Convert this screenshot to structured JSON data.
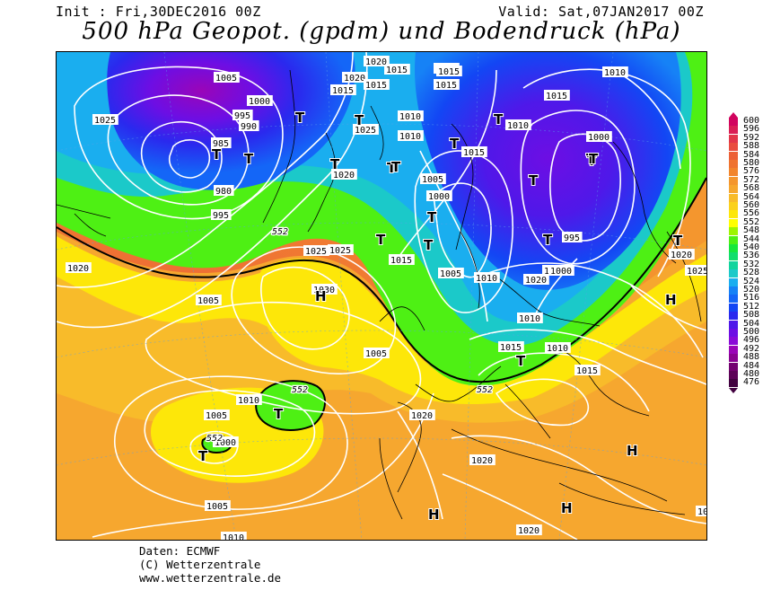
{
  "header": {
    "init": "Init : Fri,30DEC2016 00Z",
    "valid": "Valid: Sat,07JAN2017 00Z",
    "title": "500 hPa Geopot. (gpdm) und Bodendruck (hPa)"
  },
  "footer": {
    "lines": [
      "Daten: ECMWF",
      "(C) Wetterzentrale",
      "www.wetterzentrale.de"
    ]
  },
  "legend": {
    "levels": [
      "600",
      "596",
      "592",
      "588",
      "584",
      "580",
      "576",
      "572",
      "568",
      "564",
      "560",
      "556",
      "552",
      "548",
      "544",
      "540",
      "536",
      "532",
      "528",
      "524",
      "520",
      "516",
      "512",
      "508",
      "504",
      "500",
      "496",
      "492",
      "488",
      "484",
      "480",
      "476"
    ],
    "colors": [
      "#d1045e",
      "#da1e55",
      "#e2364a",
      "#e94d3f",
      "#ec6036",
      "#ef7330",
      "#f2852c",
      "#f4962e",
      "#f6a72f",
      "#f8bb2a",
      "#fbd11c",
      "#fde709",
      "#ffff00",
      "#9df500",
      "#4ef014",
      "#17e73c",
      "#12de6c",
      "#11d49d",
      "#1bc9c9",
      "#1aaeef",
      "#1682f6",
      "#1466f7",
      "#1346f4",
      "#2a29ee",
      "#4f18e9",
      "#6d0ee4",
      "#8a0ad8",
      "#9a05b8",
      "#8a0392",
      "#730270",
      "#5d0258",
      "#420140"
    ]
  },
  "map": {
    "pressure_labels": [
      {
        "text": "1005"
      },
      {
        "text": "1020"
      },
      {
        "text": "1015"
      },
      {
        "text": "1020"
      },
      {
        "text": "1015"
      },
      {
        "text": "1010"
      },
      {
        "text": "1025"
      },
      {
        "text": "1025"
      },
      {
        "text": "1000"
      },
      {
        "text": "995"
      },
      {
        "text": "990"
      },
      {
        "text": "985"
      },
      {
        "text": "1015"
      },
      {
        "text": "1025"
      },
      {
        "text": "1010"
      },
      {
        "text": "1010"
      },
      {
        "text": "1015"
      },
      {
        "text": "1015"
      },
      {
        "text": "1010"
      },
      {
        "text": "1000"
      },
      {
        "text": "1015"
      },
      {
        "text": "1020"
      },
      {
        "text": "1015"
      },
      {
        "text": "1005"
      },
      {
        "text": "1000"
      },
      {
        "text": "980"
      },
      {
        "text": "995"
      },
      {
        "text": "1020"
      },
      {
        "text": "1000"
      },
      {
        "text": "1020"
      },
      {
        "text": "1025"
      },
      {
        "text": "1015"
      },
      {
        "text": "1005"
      },
      {
        "text": "1010"
      },
      {
        "text": "995"
      },
      {
        "text": "1000"
      },
      {
        "text": "1005"
      },
      {
        "text": "1020"
      },
      {
        "text": "1025"
      },
      {
        "text": "1030"
      },
      {
        "text": "1005"
      },
      {
        "text": "1010"
      },
      {
        "text": "1015"
      },
      {
        "text": "1010"
      },
      {
        "text": "1015"
      },
      {
        "text": "1025"
      },
      {
        "text": "1010"
      },
      {
        "text": "1020"
      },
      {
        "text": "1005"
      },
      {
        "text": "1000"
      },
      {
        "text": "1020"
      },
      {
        "text": "1005"
      },
      {
        "text": "1010"
      },
      {
        "text": "1020"
      },
      {
        "text": "1020"
      },
      {
        "text": "1020"
      }
    ],
    "geopotential_labels": [
      "552",
      "552",
      "552",
      "552"
    ],
    "high_symbol": "H",
    "low_symbol": "T"
  }
}
